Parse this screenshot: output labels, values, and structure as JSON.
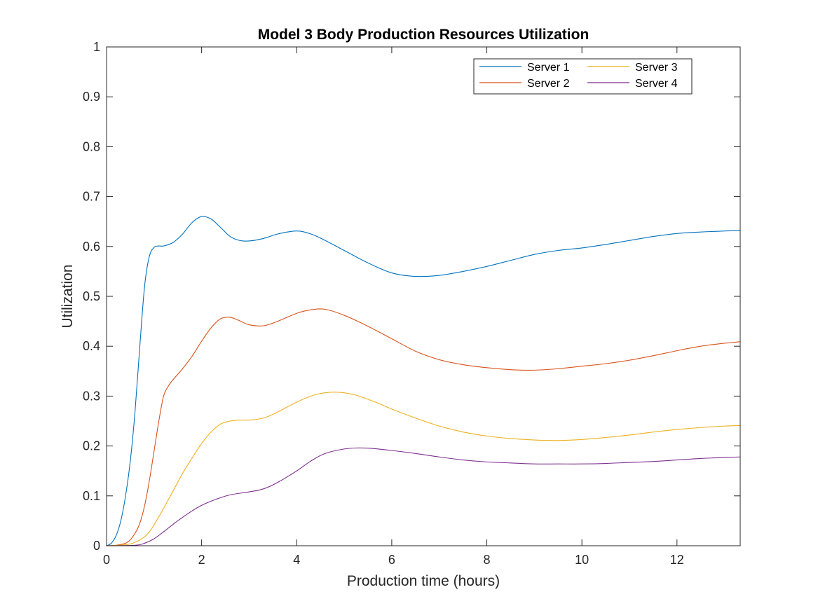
{
  "chart_data": {
    "type": "line",
    "title": "Model 3 Body Production Resources Utilization",
    "xlabel": "Production time (hours)",
    "ylabel": "Utilization",
    "xlim": [
      0,
      13.33
    ],
    "ylim": [
      0,
      1
    ],
    "xticks": [
      0,
      2,
      4,
      6,
      8,
      10,
      12
    ],
    "yticks": [
      0,
      0.1,
      0.2,
      0.3,
      0.4,
      0.5,
      0.6,
      0.7,
      0.8,
      0.9,
      1
    ],
    "grid": false,
    "legend_position": "top-right",
    "legend_columns": 2,
    "series": [
      {
        "name": "Server 1",
        "color": "#0072BD",
        "x": [
          0,
          0.1,
          0.2,
          0.3,
          0.4,
          0.5,
          0.6,
          0.7,
          0.8,
          0.9,
          1.0,
          1.1,
          1.2,
          1.4,
          1.6,
          1.8,
          2.0,
          2.2,
          2.4,
          2.6,
          2.8,
          3.0,
          3.3,
          3.6,
          4.0,
          4.3,
          4.6,
          5.0,
          5.5,
          6.0,
          6.5,
          7.0,
          7.5,
          8.0,
          8.5,
          9.0,
          9.5,
          10.0,
          10.5,
          11.0,
          11.5,
          12.0,
          12.5,
          13.0,
          13.33
        ],
        "y": [
          0,
          0.005,
          0.02,
          0.05,
          0.1,
          0.17,
          0.27,
          0.4,
          0.52,
          0.58,
          0.598,
          0.601,
          0.601,
          0.608,
          0.625,
          0.648,
          0.66,
          0.655,
          0.638,
          0.62,
          0.612,
          0.611,
          0.616,
          0.625,
          0.631,
          0.625,
          0.612,
          0.592,
          0.567,
          0.547,
          0.54,
          0.542,
          0.55,
          0.56,
          0.572,
          0.584,
          0.592,
          0.597,
          0.604,
          0.612,
          0.62,
          0.626,
          0.629,
          0.631,
          0.632
        ]
      },
      {
        "name": "Server 2",
        "color": "#D95319",
        "x": [
          0,
          0.2,
          0.4,
          0.5,
          0.6,
          0.7,
          0.8,
          0.9,
          1.0,
          1.1,
          1.2,
          1.3,
          1.4,
          1.6,
          1.8,
          2.0,
          2.2,
          2.4,
          2.6,
          2.8,
          3.0,
          3.3,
          3.6,
          4.0,
          4.3,
          4.6,
          5.0,
          5.5,
          6.0,
          6.5,
          7.0,
          7.5,
          8.0,
          8.5,
          9.0,
          9.5,
          10.0,
          10.5,
          11.0,
          11.5,
          12.0,
          12.5,
          13.0,
          13.33
        ],
        "y": [
          0,
          0.001,
          0.005,
          0.012,
          0.025,
          0.045,
          0.08,
          0.13,
          0.19,
          0.25,
          0.3,
          0.32,
          0.333,
          0.355,
          0.38,
          0.41,
          0.437,
          0.455,
          0.458,
          0.451,
          0.443,
          0.441,
          0.45,
          0.466,
          0.473,
          0.474,
          0.462,
          0.44,
          0.415,
          0.39,
          0.373,
          0.363,
          0.357,
          0.353,
          0.352,
          0.355,
          0.36,
          0.365,
          0.372,
          0.381,
          0.391,
          0.4,
          0.406,
          0.409
        ]
      },
      {
        "name": "Server 3",
        "color": "#EDB120",
        "x": [
          0,
          0.4,
          0.6,
          0.8,
          0.9,
          1.0,
          1.2,
          1.4,
          1.6,
          1.8,
          2.0,
          2.2,
          2.4,
          2.6,
          2.8,
          3.0,
          3.3,
          3.6,
          4.0,
          4.4,
          4.8,
          5.2,
          5.6,
          6.0,
          6.5,
          7.0,
          7.5,
          8.0,
          8.5,
          9.0,
          9.5,
          10.0,
          10.5,
          11.0,
          11.5,
          12.0,
          12.5,
          13.0,
          13.33
        ],
        "y": [
          0,
          0.002,
          0.007,
          0.018,
          0.028,
          0.042,
          0.075,
          0.11,
          0.145,
          0.176,
          0.205,
          0.228,
          0.244,
          0.25,
          0.252,
          0.252,
          0.256,
          0.268,
          0.288,
          0.303,
          0.308,
          0.303,
          0.29,
          0.274,
          0.256,
          0.24,
          0.228,
          0.22,
          0.215,
          0.212,
          0.211,
          0.213,
          0.217,
          0.222,
          0.228,
          0.233,
          0.237,
          0.24,
          0.241
        ]
      },
      {
        "name": "Server 4",
        "color": "#7E2F8E",
        "x": [
          0,
          0.6,
          0.8,
          1.0,
          1.2,
          1.4,
          1.6,
          1.8,
          2.0,
          2.3,
          2.6,
          3.0,
          3.3,
          3.6,
          4.0,
          4.3,
          4.6,
          5.0,
          5.3,
          5.6,
          6.0,
          6.5,
          7.0,
          7.5,
          8.0,
          8.5,
          9.0,
          9.5,
          10.0,
          10.5,
          11.0,
          11.5,
          12.0,
          12.5,
          13.0,
          13.33
        ],
        "y": [
          0,
          0.001,
          0.005,
          0.014,
          0.028,
          0.043,
          0.057,
          0.07,
          0.081,
          0.093,
          0.102,
          0.108,
          0.114,
          0.127,
          0.15,
          0.17,
          0.185,
          0.194,
          0.196,
          0.195,
          0.191,
          0.185,
          0.178,
          0.172,
          0.168,
          0.166,
          0.164,
          0.164,
          0.164,
          0.165,
          0.167,
          0.169,
          0.172,
          0.175,
          0.177,
          0.178
        ]
      }
    ]
  }
}
